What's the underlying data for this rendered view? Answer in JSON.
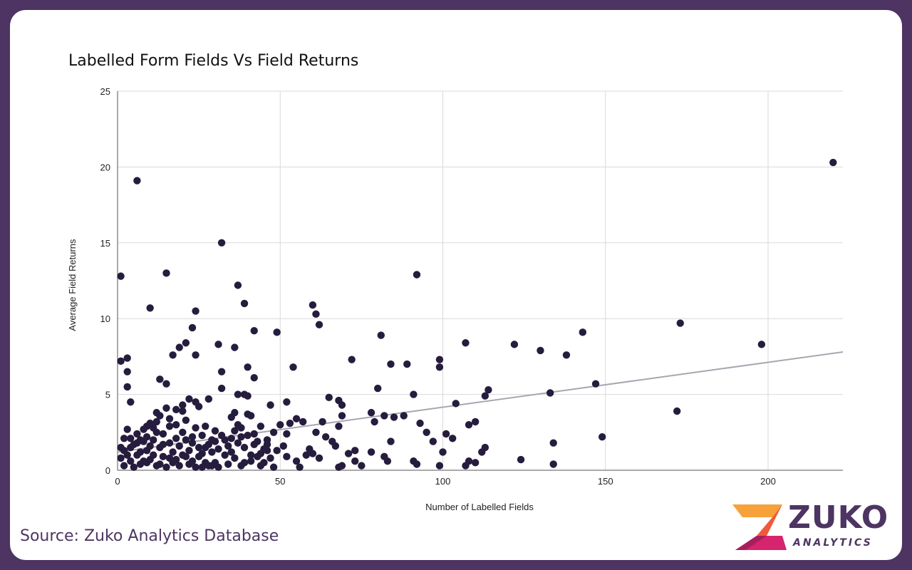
{
  "chart_data": {
    "type": "scatter",
    "title": "Labelled Form Fields Vs Field Returns",
    "xlabel": "Number of Labelled Fields",
    "ylabel": "Average Field Returns",
    "xlim": [
      0,
      223
    ],
    "ylim": [
      0,
      25
    ],
    "x_ticks": [
      0,
      50,
      100,
      150,
      200
    ],
    "y_ticks": [
      0,
      5,
      10,
      15,
      20,
      25
    ],
    "grid": true,
    "legend": "none",
    "point_color": "#261c3d",
    "trendline_color": "#a8a6b0",
    "trendline": {
      "x": [
        0,
        223
      ],
      "y": [
        1.2,
        7.8
      ]
    },
    "series": [
      {
        "values": [
          [
            220,
            20.3
          ],
          [
            6,
            19.1
          ],
          [
            32,
            15
          ],
          [
            1,
            12.8
          ],
          [
            15,
            13
          ],
          [
            92,
            12.9
          ],
          [
            37,
            12.2
          ],
          [
            10,
            10.7
          ],
          [
            24,
            10.5
          ],
          [
            39,
            11
          ],
          [
            60,
            10.9
          ],
          [
            61,
            10.3
          ],
          [
            62,
            9.6
          ],
          [
            23,
            9.4
          ],
          [
            42,
            9.2
          ],
          [
            49,
            9.1
          ],
          [
            81,
            8.9
          ],
          [
            143,
            9.1
          ],
          [
            173,
            9.7
          ],
          [
            107,
            8.4
          ],
          [
            122,
            8.3
          ],
          [
            130,
            7.9
          ],
          [
            138,
            7.6
          ],
          [
            198,
            8.3
          ],
          [
            31,
            8.3
          ],
          [
            21,
            8.4
          ],
          [
            19,
            8.1
          ],
          [
            17,
            7.6
          ],
          [
            24,
            7.6
          ],
          [
            36,
            8.1
          ],
          [
            1,
            7.2
          ],
          [
            3,
            7.4
          ],
          [
            3,
            6.5
          ],
          [
            3,
            5.5
          ],
          [
            4,
            4.5
          ],
          [
            13,
            6.0
          ],
          [
            15,
            5.7
          ],
          [
            32,
            6.5
          ],
          [
            32,
            5.4
          ],
          [
            40,
            6.8
          ],
          [
            42,
            6.1
          ],
          [
            54,
            6.8
          ],
          [
            72,
            7.3
          ],
          [
            84,
            7.0
          ],
          [
            89,
            7.0
          ],
          [
            99,
            7.3
          ],
          [
            99,
            6.8
          ],
          [
            147,
            5.7
          ],
          [
            133,
            5.1
          ],
          [
            114,
            5.3
          ],
          [
            113,
            4.9
          ],
          [
            91,
            5.0
          ],
          [
            80,
            5.4
          ],
          [
            65,
            4.8
          ],
          [
            68,
            4.6
          ],
          [
            69,
            4.3
          ],
          [
            104,
            4.4
          ],
          [
            172,
            3.9
          ],
          [
            149,
            2.2
          ],
          [
            134,
            1.8
          ],
          [
            134,
            0.4
          ],
          [
            124,
            0.7
          ],
          [
            113,
            1.5
          ],
          [
            112,
            1.2
          ],
          [
            110,
            3.2
          ],
          [
            108,
            3.0
          ],
          [
            107,
            0.3
          ],
          [
            110,
            0.5
          ],
          [
            108,
            0.6
          ],
          [
            100,
            1.2
          ],
          [
            99,
            0.3
          ],
          [
            97,
            1.9
          ],
          [
            95,
            2.5
          ],
          [
            93,
            3.1
          ],
          [
            101,
            2.4
          ],
          [
            103,
            2.1
          ],
          [
            91,
            0.6
          ],
          [
            92,
            0.4
          ],
          [
            88,
            3.6
          ],
          [
            85,
            3.5
          ],
          [
            82,
            3.6
          ],
          [
            79,
            3.2
          ],
          [
            78,
            3.8
          ],
          [
            84,
            1.9
          ],
          [
            82,
            0.9
          ],
          [
            83,
            0.6
          ],
          [
            78,
            1.2
          ],
          [
            75,
            0.3
          ],
          [
            73,
            0.6
          ],
          [
            73,
            1.3
          ],
          [
            71,
            1.1
          ],
          [
            69,
            3.6
          ],
          [
            68,
            2.9
          ],
          [
            68,
            0.2
          ],
          [
            69,
            0.3
          ],
          [
            66,
            1.9
          ],
          [
            67,
            1.6
          ],
          [
            64,
            2.2
          ],
          [
            63,
            3.2
          ],
          [
            62,
            0.8
          ],
          [
            60,
            1.1
          ],
          [
            58,
            1.0
          ],
          [
            57,
            3.2
          ],
          [
            55,
            3.4
          ],
          [
            53,
            3.1
          ],
          [
            52,
            2.4
          ],
          [
            51,
            1.6
          ],
          [
            56,
            0.2
          ],
          [
            59,
            1.4
          ],
          [
            61,
            2.5
          ],
          [
            47,
            4.3
          ],
          [
            48,
            2.5
          ],
          [
            46,
            1.3
          ],
          [
            45,
            0.5
          ],
          [
            44,
            2.9
          ],
          [
            43,
            1.9
          ],
          [
            50,
            3.0
          ],
          [
            52,
            4.5
          ],
          [
            55,
            0.6
          ],
          [
            52,
            0.9
          ],
          [
            49,
            1.3
          ],
          [
            39,
            5.0
          ],
          [
            37,
            5.0
          ],
          [
            40,
            4.9
          ],
          [
            40,
            3.7
          ],
          [
            41,
            3.6
          ],
          [
            36,
            3.8
          ],
          [
            35,
            3.5
          ],
          [
            37,
            3.0
          ],
          [
            38,
            2.8
          ],
          [
            28,
            4.7
          ],
          [
            22,
            4.7
          ],
          [
            24,
            4.5
          ],
          [
            25,
            4.2
          ],
          [
            20,
            4.3
          ],
          [
            20,
            3.9
          ],
          [
            12,
            3.8
          ],
          [
            13,
            3.6
          ],
          [
            15,
            4.1
          ],
          [
            18,
            4.0
          ],
          [
            16,
            3.4
          ],
          [
            12,
            3.2
          ],
          [
            10,
            3.1
          ],
          [
            9,
            2.9
          ],
          [
            8,
            2.7
          ],
          [
            6,
            2.4
          ],
          [
            4,
            2.1
          ],
          [
            3,
            2.7
          ],
          [
            5,
            1.7
          ],
          [
            2,
            1.3
          ],
          [
            1,
            0.8
          ],
          [
            2,
            0.3
          ],
          [
            1,
            1.5
          ],
          [
            4,
            0.6
          ],
          [
            6,
            1.0
          ],
          [
            7,
            0.4
          ],
          [
            8,
            1.9
          ],
          [
            9,
            2.2
          ],
          [
            9,
            1.3
          ],
          [
            10,
            0.7
          ],
          [
            11,
            2.0
          ],
          [
            11,
            1.0
          ],
          [
            12,
            0.3
          ],
          [
            13,
            1.5
          ],
          [
            14,
            2.4
          ],
          [
            14,
            0.9
          ],
          [
            15,
            0.2
          ],
          [
            16,
            1.8
          ],
          [
            16,
            2.9
          ],
          [
            17,
            1.2
          ],
          [
            17,
            0.5
          ],
          [
            18,
            2.1
          ],
          [
            18,
            3.0
          ],
          [
            19,
            1.6
          ],
          [
            19,
            0.3
          ],
          [
            20,
            2.5
          ],
          [
            20,
            1.0
          ],
          [
            21,
            2.0
          ],
          [
            21,
            3.3
          ],
          [
            22,
            1.3
          ],
          [
            22,
            0.4
          ],
          [
            23,
            2.2
          ],
          [
            23,
            1.8
          ],
          [
            24,
            0.2
          ],
          [
            24,
            2.8
          ],
          [
            25,
            1.5
          ],
          [
            25,
            0.9
          ],
          [
            26,
            2.3
          ],
          [
            26,
            1.1
          ],
          [
            27,
            0.5
          ],
          [
            27,
            2.9
          ],
          [
            28,
            1.7
          ],
          [
            28,
            0.3
          ],
          [
            29,
            2.0
          ],
          [
            29,
            1.2
          ],
          [
            30,
            0.5
          ],
          [
            30,
            1.9
          ],
          [
            31,
            1.4
          ],
          [
            31,
            0.2
          ],
          [
            32,
            2.3
          ],
          [
            33,
            1.0
          ],
          [
            34,
            0.4
          ],
          [
            34,
            1.6
          ],
          [
            35,
            2.1
          ],
          [
            36,
            0.8
          ],
          [
            37,
            1.8
          ],
          [
            38,
            0.3
          ],
          [
            39,
            1.5
          ],
          [
            40,
            2.3
          ],
          [
            41,
            0.6
          ],
          [
            42,
            1.7
          ],
          [
            43,
            0.9
          ],
          [
            44,
            0.3
          ],
          [
            45,
            1.4
          ],
          [
            46,
            2.0
          ],
          [
            47,
            0.8
          ],
          [
            5,
            0.2
          ],
          [
            6,
            1.8
          ],
          [
            7,
            1.2
          ],
          [
            8,
            0.6
          ],
          [
            3,
            1.0
          ],
          [
            2,
            2.1
          ],
          [
            4,
            1.5
          ],
          [
            10,
            1.6
          ],
          [
            12,
            2.5
          ],
          [
            14,
            1.7
          ],
          [
            26,
            0.2
          ],
          [
            30,
            2.6
          ],
          [
            33,
            2.0
          ],
          [
            44,
            1.1
          ],
          [
            48,
            0.2
          ],
          [
            36,
            2.6
          ],
          [
            38,
            2.2
          ],
          [
            42,
            2.4
          ],
          [
            11,
            2.8
          ],
          [
            16,
            0.8
          ],
          [
            21,
            0.9
          ],
          [
            23,
            0.6
          ],
          [
            27,
            1.5
          ],
          [
            29,
            0.3
          ],
          [
            35,
            1.2
          ],
          [
            39,
            0.5
          ],
          [
            41,
            1.0
          ],
          [
            46,
            1.7
          ],
          [
            18,
            0.7
          ],
          [
            13,
            0.4
          ],
          [
            7,
            2.0
          ],
          [
            9,
            0.5
          ]
        ]
      }
    ]
  },
  "footer": {
    "source": "Source: Zuko Analytics Database",
    "logo_word": "ZUKO",
    "logo_sub": "ANALYTICS"
  }
}
